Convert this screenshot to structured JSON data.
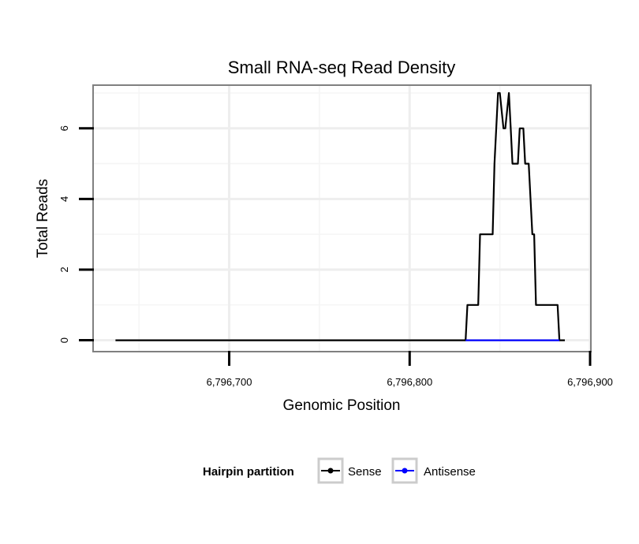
{
  "chart_data": {
    "type": "line",
    "title": "Small RNA-seq Read Density",
    "xlabel": "Genomic Position",
    "ylabel": "Total Reads",
    "xlim": [
      6796625,
      6796900
    ],
    "ylim": [
      -0.3,
      7.2
    ],
    "x_ticks": [
      6796700,
      6796800,
      6796900
    ],
    "x_tick_labels": [
      "6,796,700",
      "6,796,800",
      "6,796,900"
    ],
    "y_ticks": [
      0,
      2,
      4,
      6
    ],
    "y_tick_labels": [
      "0",
      "2",
      "4",
      "6"
    ],
    "x_minor_grid": [
      6796650,
      6796750,
      6796850
    ],
    "y_minor_grid": [
      1,
      3,
      5,
      7
    ],
    "grid": true,
    "legend": {
      "title": "Hairpin partition",
      "position": "bottom",
      "entries": [
        "Sense",
        "Antisense"
      ]
    },
    "series": [
      {
        "name": "Sense",
        "color": "#000000",
        "x": [
          6796637,
          6796831,
          6796832,
          6796838,
          6796839,
          6796846,
          6796847,
          6796849,
          6796850,
          6796852,
          6796853,
          6796855,
          6796856,
          6796857,
          6796858,
          6796860,
          6796861,
          6796863,
          6796864,
          6796865,
          6796866,
          6796868,
          6796869,
          6796870,
          6796871,
          6796873,
          6796874,
          6796882,
          6796883,
          6796886
        ],
        "y": [
          0,
          0,
          1,
          1,
          3,
          3,
          5,
          7,
          7,
          6,
          6,
          7,
          6,
          5,
          5,
          5,
          6,
          6,
          5,
          5,
          5,
          3,
          3,
          1,
          1,
          1,
          1,
          1,
          0,
          0
        ]
      },
      {
        "name": "Antisense",
        "color": "#0000ff",
        "x": [
          6796831,
          6796883
        ],
        "y": [
          0,
          0
        ]
      }
    ]
  }
}
